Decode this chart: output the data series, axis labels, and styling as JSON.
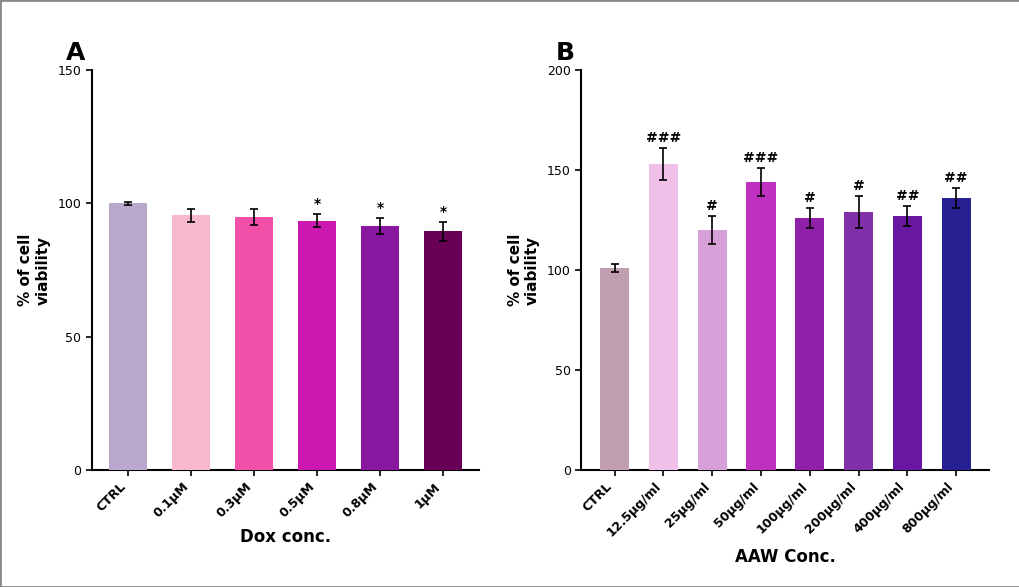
{
  "panel_A": {
    "categories": [
      "CTRL",
      "0.1μM",
      "0.3μM",
      "0.5μM",
      "0.8μM",
      "1μM"
    ],
    "values": [
      100,
      95.5,
      95.0,
      93.5,
      91.5,
      89.5
    ],
    "errors": [
      0.5,
      2.5,
      3.0,
      2.5,
      3.0,
      3.5
    ],
    "colors": [
      "#B8A8CC",
      "#F8B8D0",
      "#F050A8",
      "#CC18B0",
      "#8818A0",
      "#680058"
    ],
    "significance": [
      "",
      "",
      "",
      "*",
      "*",
      "*"
    ],
    "ylabel": "% of cell\nviability",
    "xlabel": "Dox conc.",
    "ylim": [
      0,
      150
    ],
    "yticks": [
      0,
      50,
      100,
      150
    ],
    "panel_label": "A"
  },
  "panel_B": {
    "categories": [
      "CTRL",
      "12.5μg/ml",
      "25μg/ml",
      "50μg/ml",
      "100μg/ml",
      "200μg/ml",
      "400μg/ml",
      "800μg/ml"
    ],
    "values": [
      101,
      153,
      120,
      144,
      126,
      129,
      127,
      136
    ],
    "errors": [
      2.0,
      8.0,
      7.0,
      7.0,
      5.0,
      8.0,
      5.0,
      5.0
    ],
    "colors": [
      "#C0A0B0",
      "#F0C0E8",
      "#D8A0D8",
      "#C030C0",
      "#9020A8",
      "#8030A8",
      "#6818A0",
      "#282090"
    ],
    "significance": [
      "",
      "###",
      "#",
      "###",
      "#",
      "#",
      "##",
      "##"
    ],
    "ylabel": "% of cell\nviability",
    "xlabel": "AAW Conc.",
    "ylim": [
      0,
      200
    ],
    "yticks": [
      0,
      50,
      100,
      150,
      200
    ],
    "panel_label": "B"
  },
  "background_color": "#FFFFFF",
  "bar_width": 0.6,
  "fontsize_label": 11,
  "fontsize_tick": 9,
  "fontsize_panel_label": 18,
  "fontsize_sig": 10,
  "error_capsize": 3,
  "error_linewidth": 1.2
}
